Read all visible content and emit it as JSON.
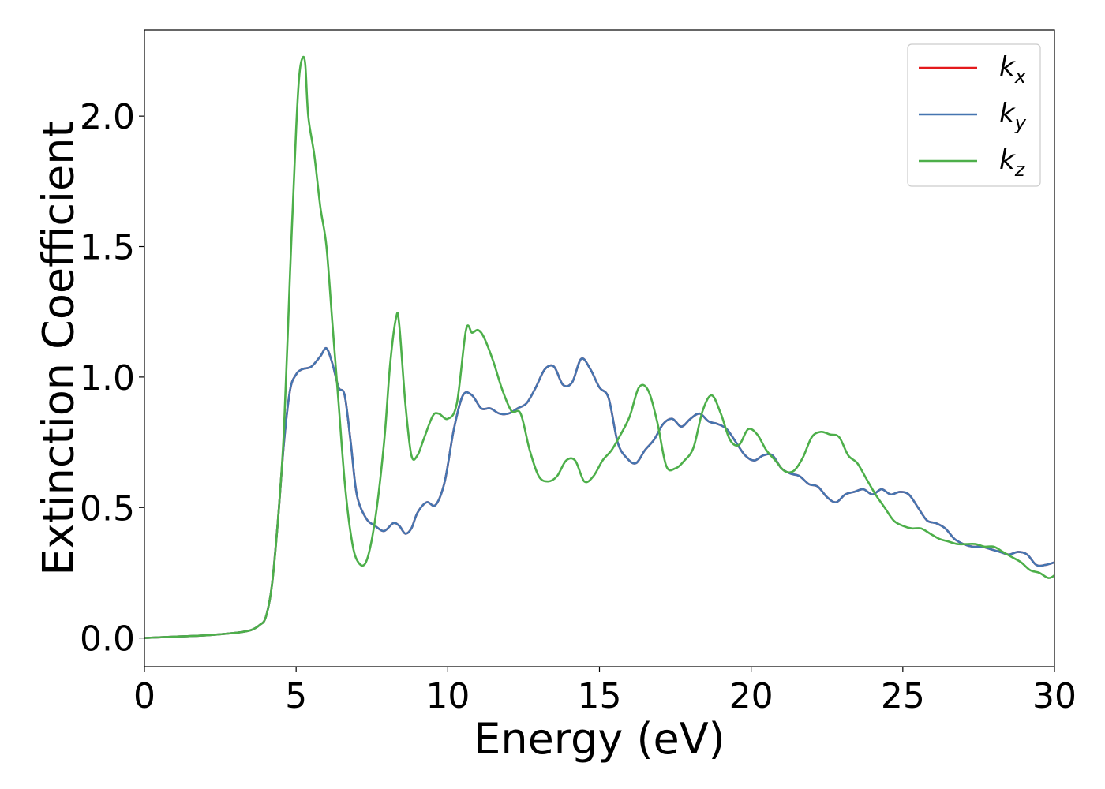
{
  "chart_data": {
    "type": "line",
    "xlabel": "Energy (eV)",
    "ylabel": "Extinction Coefficient",
    "xlim": [
      0,
      30
    ],
    "ylim": [
      -0.11,
      2.33
    ],
    "xticks": [
      0,
      5,
      10,
      15,
      20,
      25,
      30
    ],
    "yticks": [
      0.0,
      0.5,
      1.0,
      1.5,
      2.0
    ],
    "xtick_labels": [
      "0",
      "5",
      "10",
      "15",
      "20",
      "25",
      "30"
    ],
    "ytick_labels": [
      "0.0",
      "0.5",
      "1.0",
      "1.5",
      "2.0"
    ],
    "grid": false,
    "legend_position": "top-right",
    "series": [
      {
        "name": "k_x",
        "label_main": "k",
        "label_sub": "x",
        "color": "#e41a1c",
        "x": [
          0,
          1,
          2,
          3,
          3.5,
          3.8,
          4.0,
          4.2,
          4.4,
          4.6,
          4.8,
          5.0,
          5.2,
          5.5,
          5.8,
          6.0,
          6.2,
          6.4,
          6.6,
          6.8,
          7.0,
          7.3,
          7.6,
          7.9,
          8.2,
          8.4,
          8.6,
          8.8,
          9.0,
          9.3,
          9.6,
          9.9,
          10.2,
          10.5,
          10.8,
          11.1,
          11.4,
          11.7,
          12.0,
          12.3,
          12.6,
          12.9,
          13.2,
          13.5,
          13.8,
          14.1,
          14.4,
          14.7,
          15.0,
          15.3,
          15.6,
          15.9,
          16.2,
          16.5,
          16.8,
          17.1,
          17.4,
          17.7,
          18.0,
          18.3,
          18.6,
          18.9,
          19.2,
          19.5,
          19.8,
          20.1,
          20.4,
          20.7,
          21.0,
          21.3,
          21.6,
          21.9,
          22.2,
          22.5,
          22.8,
          23.1,
          23.4,
          23.7,
          24.0,
          24.3,
          24.6,
          24.9,
          25.2,
          25.5,
          25.8,
          26.1,
          26.4,
          26.7,
          27.0,
          27.3,
          27.6,
          27.9,
          28.2,
          28.5,
          28.8,
          29.1,
          29.4,
          29.7,
          30.0
        ],
        "values": [
          0.0,
          0.005,
          0.01,
          0.02,
          0.03,
          0.05,
          0.08,
          0.2,
          0.45,
          0.75,
          0.95,
          1.01,
          1.03,
          1.04,
          1.08,
          1.11,
          1.05,
          0.96,
          0.93,
          0.75,
          0.55,
          0.46,
          0.43,
          0.41,
          0.44,
          0.43,
          0.4,
          0.42,
          0.48,
          0.52,
          0.51,
          0.6,
          0.8,
          0.93,
          0.93,
          0.88,
          0.88,
          0.86,
          0.86,
          0.88,
          0.9,
          0.96,
          1.03,
          1.04,
          0.97,
          0.98,
          1.07,
          1.03,
          0.96,
          0.92,
          0.75,
          0.69,
          0.67,
          0.72,
          0.76,
          0.82,
          0.84,
          0.81,
          0.84,
          0.86,
          0.83,
          0.82,
          0.8,
          0.75,
          0.7,
          0.68,
          0.7,
          0.7,
          0.65,
          0.63,
          0.62,
          0.59,
          0.58,
          0.54,
          0.52,
          0.55,
          0.56,
          0.57,
          0.55,
          0.57,
          0.55,
          0.56,
          0.55,
          0.5,
          0.45,
          0.44,
          0.42,
          0.38,
          0.36,
          0.35,
          0.35,
          0.34,
          0.33,
          0.32,
          0.33,
          0.32,
          0.28,
          0.28,
          0.29
        ]
      },
      {
        "name": "k_y",
        "label_main": "k",
        "label_sub": "y",
        "color": "#4575b0",
        "x": [
          0,
          1,
          2,
          3,
          3.5,
          3.8,
          4.0,
          4.2,
          4.4,
          4.6,
          4.8,
          5.0,
          5.2,
          5.5,
          5.8,
          6.0,
          6.2,
          6.4,
          6.6,
          6.8,
          7.0,
          7.3,
          7.6,
          7.9,
          8.2,
          8.4,
          8.6,
          8.8,
          9.0,
          9.3,
          9.6,
          9.9,
          10.2,
          10.5,
          10.8,
          11.1,
          11.4,
          11.7,
          12.0,
          12.3,
          12.6,
          12.9,
          13.2,
          13.5,
          13.8,
          14.1,
          14.4,
          14.7,
          15.0,
          15.3,
          15.6,
          15.9,
          16.2,
          16.5,
          16.8,
          17.1,
          17.4,
          17.7,
          18.0,
          18.3,
          18.6,
          18.9,
          19.2,
          19.5,
          19.8,
          20.1,
          20.4,
          20.7,
          21.0,
          21.3,
          21.6,
          21.9,
          22.2,
          22.5,
          22.8,
          23.1,
          23.4,
          23.7,
          24.0,
          24.3,
          24.6,
          24.9,
          25.2,
          25.5,
          25.8,
          26.1,
          26.4,
          26.7,
          27.0,
          27.3,
          27.6,
          27.9,
          28.2,
          28.5,
          28.8,
          29.1,
          29.4,
          29.7,
          30.0
        ],
        "values": [
          0.0,
          0.005,
          0.01,
          0.02,
          0.03,
          0.05,
          0.08,
          0.2,
          0.45,
          0.75,
          0.95,
          1.01,
          1.03,
          1.04,
          1.08,
          1.11,
          1.05,
          0.96,
          0.93,
          0.75,
          0.55,
          0.46,
          0.43,
          0.41,
          0.44,
          0.43,
          0.4,
          0.42,
          0.48,
          0.52,
          0.51,
          0.6,
          0.8,
          0.93,
          0.93,
          0.88,
          0.88,
          0.86,
          0.86,
          0.88,
          0.9,
          0.96,
          1.03,
          1.04,
          0.97,
          0.98,
          1.07,
          1.03,
          0.96,
          0.92,
          0.75,
          0.69,
          0.67,
          0.72,
          0.76,
          0.82,
          0.84,
          0.81,
          0.84,
          0.86,
          0.83,
          0.82,
          0.8,
          0.75,
          0.7,
          0.68,
          0.7,
          0.7,
          0.65,
          0.63,
          0.62,
          0.59,
          0.58,
          0.54,
          0.52,
          0.55,
          0.56,
          0.57,
          0.55,
          0.57,
          0.55,
          0.56,
          0.55,
          0.5,
          0.45,
          0.44,
          0.42,
          0.38,
          0.36,
          0.35,
          0.35,
          0.34,
          0.33,
          0.32,
          0.33,
          0.32,
          0.28,
          0.28,
          0.29
        ]
      },
      {
        "name": "k_z",
        "label_main": "k",
        "label_sub": "z",
        "color": "#4daf4a",
        "x": [
          0,
          1,
          2,
          3,
          3.5,
          3.8,
          4.0,
          4.2,
          4.4,
          4.6,
          4.8,
          5.0,
          5.1,
          5.2,
          5.3,
          5.4,
          5.6,
          5.8,
          6.0,
          6.2,
          6.4,
          6.6,
          6.8,
          7.0,
          7.3,
          7.6,
          7.9,
          8.1,
          8.3,
          8.4,
          8.6,
          8.8,
          9.0,
          9.2,
          9.5,
          9.7,
          10.0,
          10.3,
          10.6,
          10.8,
          11.0,
          11.2,
          11.5,
          11.8,
          12.1,
          12.4,
          12.7,
          13.0,
          13.3,
          13.6,
          13.9,
          14.2,
          14.5,
          14.8,
          15.1,
          15.4,
          15.7,
          16.0,
          16.3,
          16.6,
          16.9,
          17.2,
          17.5,
          17.8,
          18.1,
          18.4,
          18.7,
          19.0,
          19.3,
          19.6,
          19.9,
          20.2,
          20.5,
          20.8,
          21.1,
          21.4,
          21.7,
          22.0,
          22.3,
          22.6,
          22.9,
          23.2,
          23.5,
          23.8,
          24.1,
          24.4,
          24.7,
          25.0,
          25.3,
          25.6,
          25.9,
          26.2,
          26.5,
          26.8,
          27.1,
          27.4,
          27.7,
          28.0,
          28.3,
          28.6,
          28.9,
          29.2,
          29.5,
          29.8,
          30.0
        ],
        "values": [
          0.0,
          0.005,
          0.01,
          0.02,
          0.03,
          0.05,
          0.08,
          0.2,
          0.45,
          0.8,
          1.4,
          1.95,
          2.15,
          2.22,
          2.2,
          2.0,
          1.85,
          1.65,
          1.5,
          1.2,
          0.9,
          0.6,
          0.4,
          0.3,
          0.29,
          0.45,
          0.75,
          1.05,
          1.23,
          1.2,
          0.9,
          0.7,
          0.7,
          0.76,
          0.85,
          0.86,
          0.84,
          0.9,
          1.18,
          1.17,
          1.18,
          1.15,
          1.06,
          0.95,
          0.87,
          0.86,
          0.72,
          0.62,
          0.6,
          0.62,
          0.68,
          0.68,
          0.6,
          0.62,
          0.68,
          0.72,
          0.78,
          0.85,
          0.96,
          0.95,
          0.83,
          0.66,
          0.65,
          0.68,
          0.73,
          0.87,
          0.93,
          0.86,
          0.76,
          0.74,
          0.8,
          0.78,
          0.72,
          0.68,
          0.64,
          0.64,
          0.69,
          0.77,
          0.79,
          0.78,
          0.77,
          0.7,
          0.67,
          0.61,
          0.55,
          0.5,
          0.45,
          0.43,
          0.42,
          0.42,
          0.4,
          0.38,
          0.37,
          0.36,
          0.36,
          0.36,
          0.35,
          0.35,
          0.33,
          0.31,
          0.29,
          0.26,
          0.25,
          0.23,
          0.24
        ]
      }
    ]
  }
}
